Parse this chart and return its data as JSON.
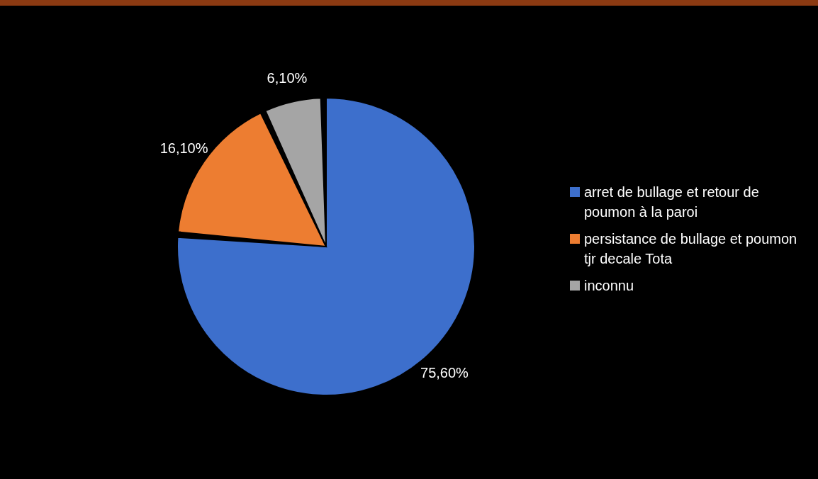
{
  "chart_data": {
    "type": "pie",
    "categories": [
      "arret de bullage et retour de poumon à la paroi",
      "persistance de bullage et poumon tjr decale Tota",
      "inconnu"
    ],
    "values": [
      75.6,
      16.1,
      6.1
    ],
    "colors": [
      "#3d6fcc",
      "#ed7d31",
      "#a5a5a5"
    ],
    "value_labels": [
      "75,60%",
      "16,10%",
      "6,10%"
    ],
    "legend": "right"
  }
}
